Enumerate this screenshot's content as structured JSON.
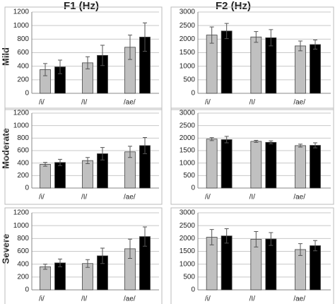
{
  "column_titles": [
    "F1 (Hz)",
    "F2 (Hz)"
  ],
  "row_labels": [
    "Mild",
    "Moderate",
    "Severe"
  ],
  "chart_data": [
    {
      "type": "bar",
      "categories": [
        "/i/",
        "/I/",
        "/ae/"
      ],
      "ylim": [
        0,
        1200
      ],
      "yticks": [
        0,
        200,
        400,
        600,
        800,
        1000,
        1200
      ],
      "grid": true,
      "series": [
        {
          "color": "#c0c0c0",
          "values": [
            350,
            450,
            680
          ],
          "errors": [
            90,
            90,
            180
          ]
        },
        {
          "color": "#000000",
          "values": [
            390,
            560,
            830
          ],
          "errors": [
            100,
            150,
            210
          ]
        }
      ]
    },
    {
      "type": "bar",
      "categories": [
        "/i/",
        "/I/",
        "/ae/"
      ],
      "ylim": [
        0,
        3000
      ],
      "yticks": [
        0,
        500,
        1000,
        1500,
        2000,
        2500,
        3000
      ],
      "grid": true,
      "series": [
        {
          "color": "#c0c0c0",
          "values": [
            2150,
            2080,
            1750
          ],
          "errors": [
            300,
            200,
            180
          ]
        },
        {
          "color": "#000000",
          "values": [
            2300,
            2050,
            1800
          ],
          "errors": [
            280,
            300,
            170
          ]
        }
      ]
    },
    {
      "type": "bar",
      "categories": [
        "/i/",
        "/I/",
        "/ae/"
      ],
      "ylim": [
        0,
        1200
      ],
      "yticks": [
        0,
        200,
        400,
        600,
        800,
        1000,
        1200
      ],
      "grid": true,
      "series": [
        {
          "color": "#c0c0c0",
          "values": [
            380,
            440,
            580
          ],
          "errors": [
            30,
            50,
            90
          ]
        },
        {
          "color": "#000000",
          "values": [
            410,
            550,
            680
          ],
          "errors": [
            50,
            100,
            130
          ]
        }
      ]
    },
    {
      "type": "bar",
      "categories": [
        "/i/",
        "/I/",
        "/ae/"
      ],
      "ylim": [
        0,
        3000
      ],
      "yticks": [
        0,
        500,
        1000,
        1500,
        2000,
        2500,
        3000
      ],
      "grid": true,
      "series": [
        {
          "color": "#c0c0c0",
          "values": [
            1960,
            1870,
            1700
          ],
          "errors": [
            60,
            40,
            60
          ]
        },
        {
          "color": "#000000",
          "values": [
            1940,
            1830,
            1710
          ],
          "errors": [
            130,
            60,
            100
          ]
        }
      ]
    },
    {
      "type": "bar",
      "categories": [
        "/i/",
        "/I/",
        "/ae/"
      ],
      "ylim": [
        0,
        1200
      ],
      "yticks": [
        0,
        200,
        400,
        600,
        800,
        1000,
        1200
      ],
      "grid": true,
      "series": [
        {
          "color": "#c0c0c0",
          "values": [
            360,
            410,
            640
          ],
          "errors": [
            40,
            60,
            150
          ]
        },
        {
          "color": "#000000",
          "values": [
            420,
            530,
            830
          ],
          "errors": [
            60,
            120,
            150
          ]
        }
      ]
    },
    {
      "type": "bar",
      "categories": [
        "/i/",
        "/I/",
        "/ae/"
      ],
      "ylim": [
        0,
        3000
      ],
      "yticks": [
        0,
        500,
        1000,
        1500,
        2000,
        2500,
        3000
      ],
      "grid": true,
      "series": [
        {
          "color": "#c0c0c0",
          "values": [
            2050,
            1970,
            1570
          ],
          "errors": [
            300,
            300,
            230
          ]
        },
        {
          "color": "#000000",
          "values": [
            2100,
            1980,
            1720
          ],
          "errors": [
            280,
            250,
            200
          ]
        }
      ]
    }
  ]
}
